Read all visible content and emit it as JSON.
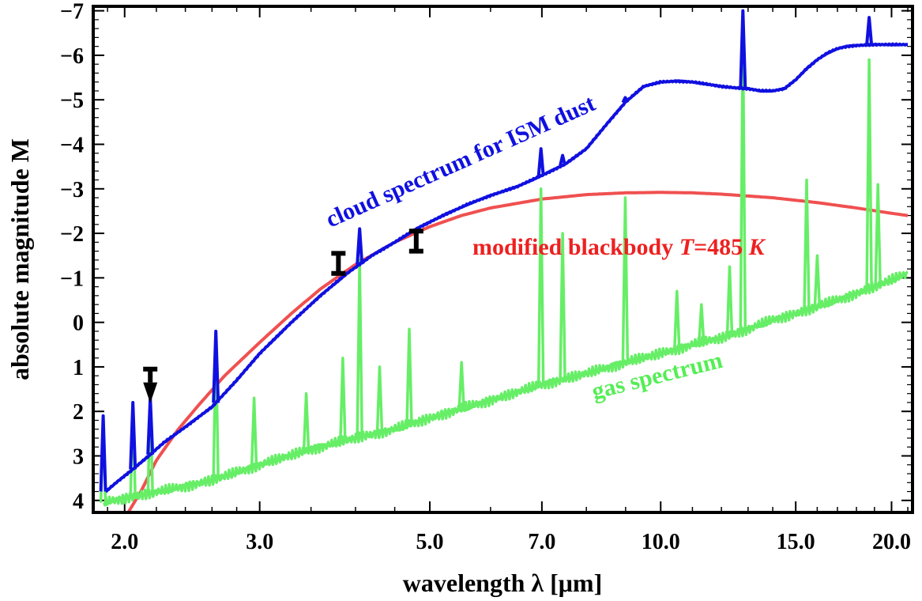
{
  "chart_data": {
    "type": "line",
    "xlabel": "wavelength  λ [μm]",
    "ylabel": "absolute  magnitude  M",
    "x_scale": "log",
    "y_inverted": true,
    "xlim": [
      1.82,
      21.3
    ],
    "ylim": [
      4.27,
      -7.1
    ],
    "x_ticks": [
      {
        "value": 2.0,
        "label": "2.0"
      },
      {
        "value": 3.0,
        "label": "3.0"
      },
      {
        "value": 5.0,
        "label": "5.0"
      },
      {
        "value": 7.0,
        "label": "7.0"
      },
      {
        "value": 10.0,
        "label": "10.0"
      },
      {
        "value": 15.0,
        "label": "15.0"
      },
      {
        "value": 20.0,
        "label": "20.0"
      }
    ],
    "y_ticks": [
      {
        "value": -7,
        "label": "−7"
      },
      {
        "value": -6,
        "label": "−6"
      },
      {
        "value": -5,
        "label": "−5"
      },
      {
        "value": -4,
        "label": "−4"
      },
      {
        "value": -3,
        "label": "−3"
      },
      {
        "value": -2,
        "label": "−2"
      },
      {
        "value": -1,
        "label": "−1"
      },
      {
        "value": 0,
        "label": "0"
      },
      {
        "value": 1,
        "label": "1"
      },
      {
        "value": 2,
        "label": "2"
      },
      {
        "value": 3,
        "label": "3"
      },
      {
        "value": 4,
        "label": "4"
      }
    ],
    "series": [
      {
        "name": "cloud spectrum for ISM dust",
        "color": "#1010e0",
        "x": [
          1.89,
          1.95,
          2.05,
          2.15,
          2.25,
          2.4,
          2.6,
          2.8,
          3.0,
          3.3,
          3.6,
          3.9,
          4.2,
          4.5,
          4.8,
          5.2,
          5.6,
          6.0,
          6.5,
          7.0,
          7.5,
          8.0,
          8.5,
          9.0,
          9.5,
          10.0,
          10.5,
          11.0,
          11.5,
          12.0,
          12.5,
          13.0,
          13.5,
          14.0,
          14.5,
          15.0,
          15.5,
          16.0,
          16.5,
          17.0,
          17.5,
          18.0,
          18.5,
          19.0,
          20.0,
          21.0
        ],
        "y": [
          3.8,
          3.6,
          3.3,
          3.0,
          2.7,
          2.35,
          1.9,
          1.3,
          0.7,
          0.0,
          -0.6,
          -1.1,
          -1.5,
          -1.8,
          -2.1,
          -2.4,
          -2.65,
          -2.85,
          -3.05,
          -3.3,
          -3.55,
          -3.9,
          -4.45,
          -4.95,
          -5.3,
          -5.4,
          -5.42,
          -5.4,
          -5.35,
          -5.3,
          -5.27,
          -5.25,
          -5.2,
          -5.2,
          -5.25,
          -5.45,
          -5.7,
          -5.9,
          -6.05,
          -6.15,
          -6.2,
          -6.22,
          -6.23,
          -6.24,
          -6.24,
          -6.24
        ],
        "peaks": [
          {
            "x": 1.875,
            "y": 2.1
          },
          {
            "x": 2.05,
            "y": 1.8
          },
          {
            "x": 2.16,
            "y": 1.7
          },
          {
            "x": 2.63,
            "y": 0.2
          },
          {
            "x": 4.05,
            "y": -2.1
          },
          {
            "x": 6.98,
            "y": -3.9
          },
          {
            "x": 7.45,
            "y": -3.75
          },
          {
            "x": 8.99,
            "y": -5.05
          },
          {
            "x": 12.8,
            "y": -7.0
          },
          {
            "x": 18.7,
            "y": -6.85
          }
        ]
      },
      {
        "name": "modified blackbody T=485 K",
        "color": "#f05050",
        "x": [
          2.0,
          2.1,
          2.2,
          2.35,
          2.5,
          2.7,
          3.0,
          3.3,
          3.6,
          4.0,
          4.5,
          5.0,
          5.5,
          6.0,
          7.0,
          8.0,
          9.0,
          10.0,
          11.0,
          12.0,
          14.0,
          16.0,
          18.0,
          20.0,
          21.0
        ],
        "y": [
          4.4,
          3.8,
          3.1,
          2.4,
          1.85,
          1.2,
          0.45,
          -0.2,
          -0.75,
          -1.3,
          -1.8,
          -2.15,
          -2.4,
          -2.57,
          -2.77,
          -2.87,
          -2.91,
          -2.92,
          -2.91,
          -2.88,
          -2.8,
          -2.69,
          -2.57,
          -2.45,
          -2.4
        ]
      },
      {
        "name": "gas spectrum",
        "color": "#66ee66",
        "x": [
          1.88,
          2.0,
          2.3,
          2.6,
          3.0,
          3.5,
          4.0,
          4.5,
          5.0,
          6.0,
          7.0,
          8.0,
          9.0,
          10.0,
          11.0,
          12.0,
          13.0,
          14.0,
          15.0,
          16.0,
          17.0,
          18.0,
          19.0,
          20.0,
          21.0
        ],
        "y": [
          4.05,
          3.95,
          3.75,
          3.55,
          3.2,
          2.85,
          2.6,
          2.4,
          2.15,
          1.75,
          1.4,
          1.15,
          0.9,
          0.7,
          0.5,
          0.35,
          0.15,
          -0.05,
          -0.2,
          -0.35,
          -0.5,
          -0.65,
          -0.8,
          -0.95,
          -1.1
        ],
        "peaks": [
          {
            "x": 1.875,
            "y": 2.2
          },
          {
            "x": 2.05,
            "y": 1.85
          },
          {
            "x": 2.16,
            "y": 1.8
          },
          {
            "x": 2.63,
            "y": 0.3
          },
          {
            "x": 2.95,
            "y": 1.7
          },
          {
            "x": 3.45,
            "y": 1.6
          },
          {
            "x": 3.85,
            "y": 0.8
          },
          {
            "x": 4.05,
            "y": -1.4
          },
          {
            "x": 4.3,
            "y": 1.0
          },
          {
            "x": 4.7,
            "y": 0.15
          },
          {
            "x": 5.5,
            "y": 0.9
          },
          {
            "x": 6.98,
            "y": -3.0
          },
          {
            "x": 7.45,
            "y": -2.0
          },
          {
            "x": 8.99,
            "y": -2.8
          },
          {
            "x": 10.5,
            "y": -0.7
          },
          {
            "x": 11.3,
            "y": -0.4
          },
          {
            "x": 12.3,
            "y": -1.25
          },
          {
            "x": 12.8,
            "y": -6.6
          },
          {
            "x": 15.5,
            "y": -3.2
          },
          {
            "x": 16.0,
            "y": -1.5
          },
          {
            "x": 18.7,
            "y": -5.9
          },
          {
            "x": 19.2,
            "y": -3.1
          }
        ]
      }
    ],
    "observations": [
      {
        "x": 2.16,
        "y_top": 1.05,
        "y_bottom": 1.35,
        "upper_limit": true
      },
      {
        "x": 3.8,
        "y_top": -1.55,
        "y_bottom": -1.1,
        "upper_limit": false
      },
      {
        "x": 4.8,
        "y_top": -2.05,
        "y_bottom": -1.6,
        "upper_limit": false
      }
    ],
    "annotations": [
      {
        "text": "cloud spectrum for ISM dust",
        "color": "#1010e0"
      },
      {
        "text": "modified blackbody ",
        "italic_t": "T",
        "eq": "=485 ",
        "italic_k": "K",
        "color": "#ee2020"
      },
      {
        "text": "gas spectrum",
        "color": "#55ee55"
      }
    ]
  }
}
